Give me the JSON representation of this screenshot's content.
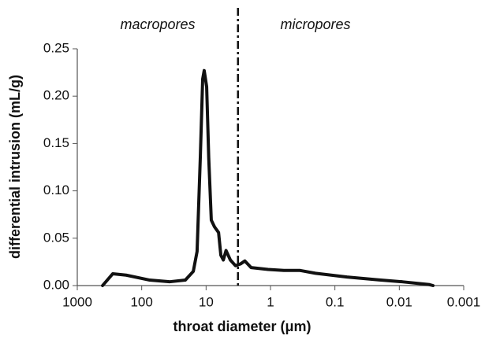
{
  "chart_data": {
    "type": "line",
    "xlabel": "throat diameter (μm)",
    "ylabel": "differential intrusion (mL/g)",
    "annotations": [
      "macropores",
      "micropores"
    ],
    "divider_x": 3.2,
    "xscale": "log",
    "xlim": [
      1000,
      0.001
    ],
    "xticks": [
      1000,
      100,
      10,
      1,
      0.1,
      0.01,
      0.001
    ],
    "ylim": [
      0,
      0.25
    ],
    "yticks": [
      {
        "value": 0,
        "label": "0.00"
      },
      {
        "value": 0.05,
        "label": "0.05"
      },
      {
        "value": 0.1,
        "label": "0.10"
      },
      {
        "value": 0.15,
        "label": "0.15"
      },
      {
        "value": 0.2,
        "label": "0.20"
      },
      {
        "value": 0.25,
        "label": "0.25"
      }
    ],
    "grid": false,
    "series": [
      {
        "color": "#111111",
        "x": [
          405,
          281,
          174,
          75,
          37,
          21,
          15.8,
          13.8,
          12.3,
          11.3,
          10.7,
          9.8,
          9.1,
          8.3,
          7.4,
          6.4,
          5.9,
          5.4,
          4.9,
          4.2,
          3.5,
          2.9,
          2.5,
          2.0,
          1.09,
          0.62,
          0.35,
          0.2,
          0.065,
          0.021,
          0.009,
          0.0034,
          0.003
        ],
        "values": [
          0,
          0.0125,
          0.011,
          0.0058,
          0.004,
          0.0058,
          0.015,
          0.036,
          0.135,
          0.218,
          0.227,
          0.21,
          0.135,
          0.069,
          0.062,
          0.056,
          0.032,
          0.027,
          0.037,
          0.027,
          0.021,
          0.023,
          0.026,
          0.019,
          0.017,
          0.016,
          0.016,
          0.013,
          0.009,
          0.006,
          0.004,
          0.001,
          0
        ]
      }
    ]
  }
}
